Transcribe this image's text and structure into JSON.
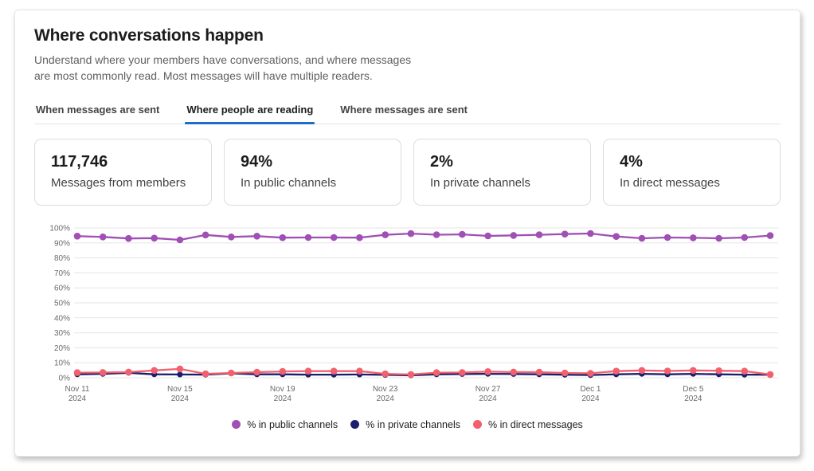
{
  "page": {
    "title": "Where conversations happen",
    "subtitle": "Understand where your members have conversations, and where messages are most commonly read. Most messages will have multiple readers."
  },
  "tabs": {
    "items": [
      {
        "label": "When messages are sent",
        "active": false
      },
      {
        "label": "Where people are reading",
        "active": true
      },
      {
        "label": "Where messages are sent",
        "active": false
      }
    ]
  },
  "stats": {
    "cards": [
      {
        "value": "117,746",
        "label": "Messages from members"
      },
      {
        "value": "94%",
        "label": "In public channels"
      },
      {
        "value": "2%",
        "label": "In private channels"
      },
      {
        "value": "4%",
        "label": "In direct messages"
      }
    ]
  },
  "colors": {
    "active_tab_underline": "#1f6dc9",
    "public_channels": "#a050b4",
    "private_channels": "#1a1e6e",
    "direct_messages": "#f2606d",
    "gridline": "#e5e5e5",
    "axis_text": "#696969"
  },
  "chart_data": {
    "type": "line",
    "x": [
      "Nov 11",
      "Nov 12",
      "Nov 13",
      "Nov 14",
      "Nov 15",
      "Nov 16",
      "Nov 17",
      "Nov 18",
      "Nov 19",
      "Nov 20",
      "Nov 21",
      "Nov 22",
      "Nov 23",
      "Nov 24",
      "Nov 25",
      "Nov 26",
      "Nov 27",
      "Nov 28",
      "Nov 29",
      "Nov 30",
      "Dec 1",
      "Dec 2",
      "Dec 3",
      "Dec 4",
      "Dec 5",
      "Dec 6",
      "Dec 7",
      "Dec 8"
    ],
    "x_tick_indices": [
      0,
      4,
      8,
      12,
      16,
      20,
      24
    ],
    "x_tick_year": "2024",
    "ylim": [
      0,
      100
    ],
    "y_tick_step": 10,
    "y_tick_suffix": "%",
    "grid": true,
    "legend_position": "bottom",
    "series": [
      {
        "name": "% in public channels",
        "color": "#a050b4",
        "values": [
          94.5,
          94,
          93,
          93.2,
          92,
          95.3,
          94,
          94.5,
          93.5,
          93.6,
          93.6,
          93.5,
          95.4,
          96.2,
          95.5,
          95.7,
          94.7,
          95,
          95.4,
          95.9,
          96.3,
          94.3,
          93.1,
          93.6,
          93.4,
          93.1,
          93.6,
          94.9
        ]
      },
      {
        "name": "% in private channels",
        "color": "#1a1e6e",
        "values": [
          2.3,
          2.6,
          3.3,
          2.3,
          2.2,
          2.1,
          2.9,
          2.3,
          2.3,
          2.1,
          2.1,
          2.2,
          1.9,
          1.6,
          2.3,
          2.5,
          2.6,
          2.5,
          2.3,
          2.0,
          1.8,
          2.3,
          2.6,
          2.3,
          2.6,
          2.3,
          2.1,
          2.0
        ]
      },
      {
        "name": "% in direct messages",
        "color": "#f2606d",
        "values": [
          3.4,
          3.5,
          3.8,
          4.9,
          5.9,
          2.6,
          3.2,
          3.7,
          4.2,
          4.4,
          4.4,
          4.4,
          2.6,
          2.2,
          3.4,
          3.5,
          4.1,
          3.8,
          3.7,
          3.2,
          3.0,
          4.4,
          4.9,
          4.5,
          4.9,
          4.7,
          4.4,
          2.2
        ]
      }
    ]
  }
}
